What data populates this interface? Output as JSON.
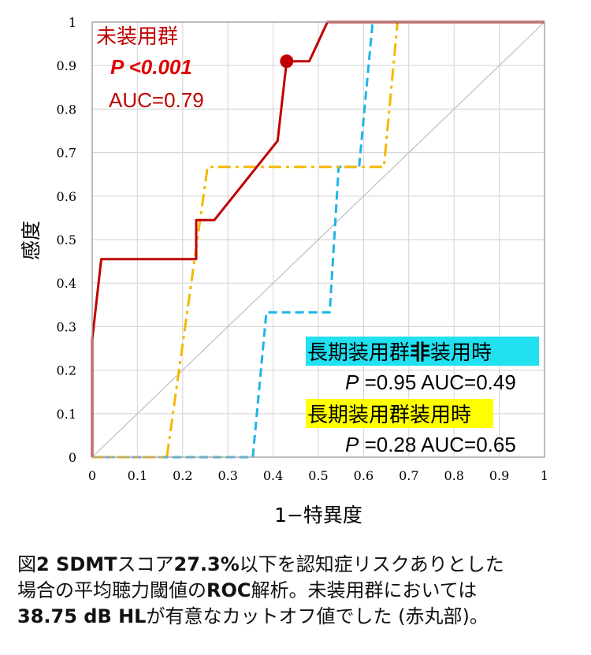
{
  "chart_data": {
    "type": "line",
    "xlabel": "1−特異度",
    "ylabel": "感度",
    "xlim": [
      0,
      1
    ],
    "ylim": [
      0,
      1
    ],
    "x_ticks": [
      "0",
      "0.1",
      "0.2",
      "0.3",
      "0.4",
      "0.5",
      "0.6",
      "0.7",
      "0.8",
      "0.9",
      "1"
    ],
    "y_ticks": [
      "0",
      "0.1",
      "0.2",
      "0.3",
      "0.4",
      "0.5",
      "0.6",
      "0.7",
      "0.8",
      "0.9",
      "1"
    ],
    "grid": true,
    "reference_line": {
      "from": [
        0,
        0
      ],
      "to": [
        1,
        1
      ],
      "color": "#bfbfbf"
    },
    "series": [
      {
        "name": "未装用群",
        "color": "#c00000",
        "style": "solid",
        "points": [
          [
            0,
            0
          ],
          [
            0,
            0.27
          ],
          [
            0.02,
            0.455
          ],
          [
            0.23,
            0.455
          ],
          [
            0.23,
            0.545
          ],
          [
            0.27,
            0.545
          ],
          [
            0.41,
            0.727
          ],
          [
            0.43,
            0.91
          ],
          [
            0.48,
            0.91
          ],
          [
            0.52,
            1
          ],
          [
            1,
            1
          ]
        ]
      },
      {
        "name": "長期装用群非装用時",
        "color": "#1fb4e8",
        "style": "dashed",
        "points": [
          [
            0,
            0
          ],
          [
            0.355,
            0
          ],
          [
            0.385,
            0.333
          ],
          [
            0.525,
            0.333
          ],
          [
            0.545,
            0.667
          ],
          [
            0.59,
            0.667
          ],
          [
            0.62,
            1
          ],
          [
            1,
            1
          ]
        ]
      },
      {
        "name": "長期装用群装用時",
        "color": "#f5b800",
        "style": "dashdot",
        "points": [
          [
            0,
            0
          ],
          [
            0.165,
            0
          ],
          [
            0.255,
            0.667
          ],
          [
            0.645,
            0.667
          ],
          [
            0.675,
            1
          ],
          [
            1,
            1
          ]
        ]
      }
    ],
    "cutoff_marker": {
      "x": 0.43,
      "y": 0.91,
      "color": "#c00000"
    },
    "annotations": {
      "group1_title": "未装用群",
      "group1_p": "P <0.001",
      "group1_auc": "AUC=0.79",
      "group2_title_a": "長期装用群",
      "group2_title_b": "非",
      "group2_title_c": "装用時",
      "group2_p": "P",
      "group2_stats": " =0.95 AUC=0.49",
      "group3_title": "長期装用群装用時",
      "group3_p": "P",
      "group3_stats": " =0.28 AUC=0.65"
    },
    "highlight_colors": {
      "cyan": "#21e0f0",
      "yellow": "#ffff00"
    }
  },
  "caption": {
    "line1_a": "図",
    "line1_b": "2 SDMT",
    "line1_c": "スコア",
    "line1_d": "27.3%",
    "line1_e": "以下を認知症リスクありとした",
    "line2_a": "場合の平均聴力閾値の",
    "line2_b": "ROC",
    "line2_c": "解析。未装用群においては",
    "line3_a": "38.75 dB HL",
    "line3_b": "が有意なカットオフ値でした",
    "line3_c": " (",
    "line3_d": "赤丸部",
    "line3_e": ")。"
  }
}
